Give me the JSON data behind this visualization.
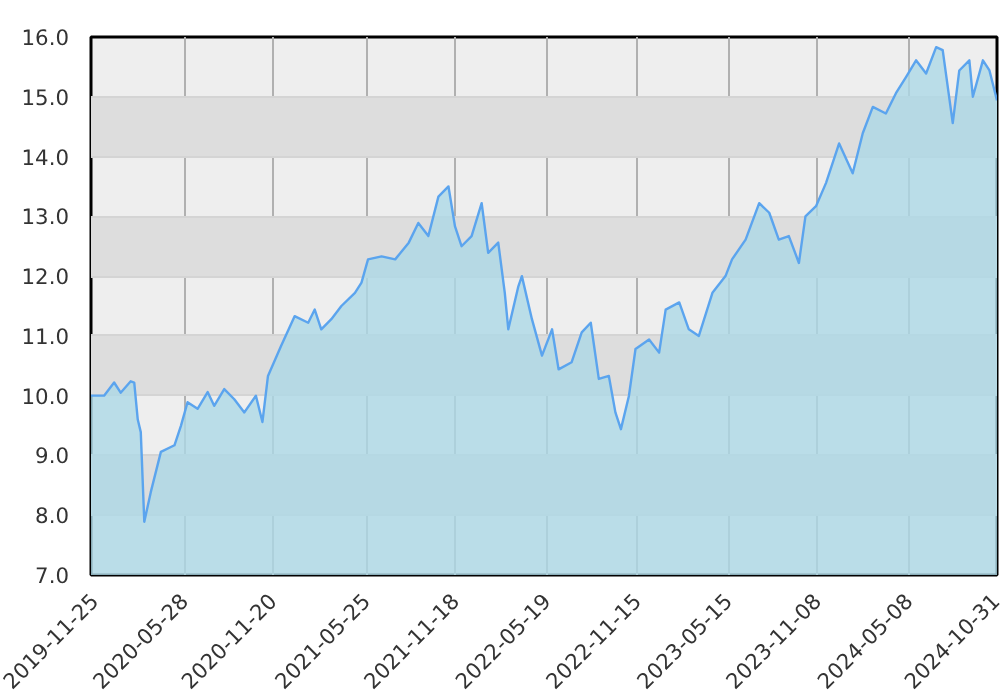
{
  "chart_data": {
    "type": "area",
    "x": [
      "2019-11-25",
      "2019-12-21",
      "2020-01-10",
      "2020-01-23",
      "2020-02-12",
      "2020-02-19",
      "2020-02-26",
      "2020-03-03",
      "2020-03-10",
      "2020-03-23",
      "2020-04-12",
      "2020-05-09",
      "2020-05-22",
      "2020-06-04",
      "2020-06-24",
      "2020-07-14",
      "2020-07-27",
      "2020-08-16",
      "2020-09-05",
      "2020-09-25",
      "2020-10-18",
      "2020-10-31",
      "2020-11-11",
      "2020-12-07",
      "2021-01-03",
      "2021-01-30",
      "2021-02-12",
      "2021-02-25",
      "2021-03-17",
      "2021-04-06",
      "2021-05-03",
      "2021-05-16",
      "2021-05-29",
      "2021-06-25",
      "2021-07-22",
      "2021-08-18",
      "2021-09-06",
      "2021-09-26",
      "2021-10-16",
      "2021-11-05",
      "2021-11-18",
      "2021-12-01",
      "2021-12-21",
      "2022-01-10",
      "2022-01-23",
      "2022-02-12",
      "2022-02-25",
      "2022-03-04",
      "2022-03-24",
      "2022-03-31",
      "2022-04-20",
      "2022-05-10",
      "2022-05-30",
      "2022-06-12",
      "2022-07-08",
      "2022-07-28",
      "2022-08-15",
      "2022-08-31",
      "2022-09-20",
      "2022-10-03",
      "2022-10-14",
      "2022-10-30",
      "2022-11-12",
      "2022-12-09",
      "2022-12-29",
      "2023-01-11",
      "2023-02-07",
      "2023-02-26",
      "2023-03-18",
      "2023-04-14",
      "2023-05-10",
      "2023-05-23",
      "2023-06-19",
      "2023-07-16",
      "2023-08-05",
      "2023-08-24",
      "2023-09-13",
      "2023-10-03",
      "2023-10-16",
      "2023-11-06",
      "2023-11-26",
      "2023-12-22",
      "2024-01-18",
      "2024-02-07",
      "2024-02-27",
      "2024-03-24",
      "2024-04-13",
      "2024-05-03",
      "2024-05-23",
      "2024-06-12",
      "2024-07-02",
      "2024-07-15",
      "2024-08-04",
      "2024-08-17",
      "2024-09-06",
      "2024-09-13",
      "2024-10-03",
      "2024-10-16",
      "2024-10-31"
    ],
    "series": [
      {
        "color": "#5ba4ee",
        "values": [
          10.0,
          10.0,
          10.22,
          10.05,
          10.24,
          10.22,
          9.6,
          9.39,
          7.89,
          8.39,
          9.06,
          9.17,
          9.5,
          9.89,
          9.78,
          10.06,
          9.83,
          10.11,
          9.94,
          9.72,
          10.0,
          9.56,
          10.33,
          10.83,
          11.33,
          11.22,
          11.44,
          11.11,
          11.28,
          11.5,
          11.72,
          11.89,
          12.28,
          12.33,
          12.28,
          12.56,
          12.89,
          12.67,
          13.33,
          13.5,
          12.83,
          12.5,
          12.67,
          13.22,
          12.39,
          12.56,
          11.72,
          11.11,
          11.83,
          12.0,
          11.28,
          10.67,
          11.11,
          10.44,
          10.56,
          11.06,
          11.22,
          10.28,
          10.33,
          9.72,
          9.44,
          10.0,
          10.78,
          10.94,
          10.72,
          11.44,
          11.56,
          11.11,
          11.0,
          11.72,
          12.0,
          12.28,
          12.61,
          13.22,
          13.06,
          12.61,
          12.67,
          12.22,
          13.0,
          13.17,
          13.56,
          14.22,
          13.72,
          14.39,
          14.83,
          14.72,
          15.06,
          15.33,
          15.61,
          15.39,
          15.83,
          15.78,
          14.56,
          15.44,
          15.61,
          15.0,
          15.61,
          15.44,
          14.94
        ]
      }
    ],
    "xlim": [
      "2019-11-25",
      "2024-10-31"
    ],
    "xticks": [
      "2019-11-25",
      "2020-05-28",
      "2020-11-20",
      "2021-05-25",
      "2021-11-18",
      "2022-05-19",
      "2022-11-15",
      "2023-05-15",
      "2023-11-08",
      "2024-05-08",
      "2024-10-31"
    ],
    "ylim": [
      7.0,
      16.0
    ],
    "yticks": [
      {
        "value": 7,
        "label": "7.0"
      },
      {
        "value": 8,
        "label": "8.0"
      },
      {
        "value": 9,
        "label": "9.0"
      },
      {
        "value": 10,
        "label": "10.0"
      },
      {
        "value": 11,
        "label": "11.0"
      },
      {
        "value": 12,
        "label": "12.0"
      },
      {
        "value": 13,
        "label": "13.0"
      },
      {
        "value": 14,
        "label": "14.0"
      },
      {
        "value": 15,
        "label": "15.0"
      },
      {
        "value": 16,
        "label": "16.0"
      }
    ],
    "grid": true
  }
}
